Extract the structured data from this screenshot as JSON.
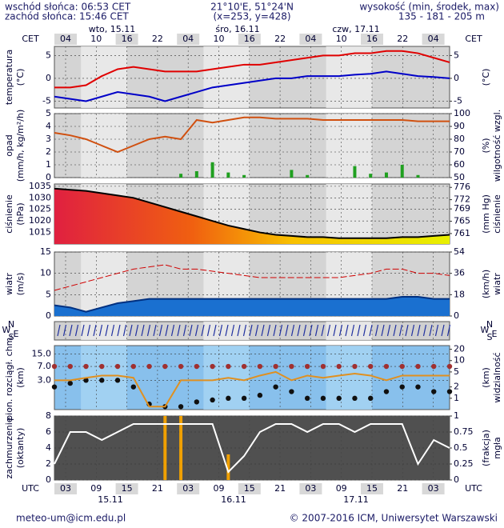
{
  "header": {
    "sunrise": "wschód słońca: 06:53 CET",
    "sunset": "zachód słońca: 15:46 CET",
    "coords": "21°10'E, 51°24'N",
    "grid": "(x=253, y=428)",
    "elevation_title": "wysokość (min, środek, max)",
    "elevation": "135 - 181 - 205 m"
  },
  "top_axis": {
    "zone": "CET",
    "hours": [
      "04",
      "10",
      "16",
      "22",
      "04",
      "10",
      "16",
      "22",
      "04",
      "10",
      "16",
      "22",
      "04"
    ],
    "days": [
      "wto, 15.11",
      "śro, 16.11",
      "czw, 17.11"
    ]
  },
  "bottom_axis": {
    "zone": "UTC",
    "hours": [
      "03",
      "09",
      "15",
      "21",
      "03",
      "09",
      "15",
      "21",
      "03",
      "09",
      "15",
      "21",
      "03"
    ],
    "days": [
      "15.11",
      "16.11",
      "17.11"
    ]
  },
  "panels": [
    {
      "label": [
        "temperatura",
        "(°C)"
      ],
      "label_right": [
        "(°C)"
      ],
      "ylim": [
        -6.5,
        7
      ],
      "yticks": [
        5,
        0,
        -5
      ],
      "y2lim": [
        -6.5,
        7
      ],
      "y2ticks": [
        5,
        0,
        -5
      ],
      "series": [
        {
          "style": "line",
          "color": "#e00000",
          "values": [
            -2,
            -2,
            -1.5,
            0.5,
            2,
            2.5,
            2,
            1.5,
            1.5,
            1.5,
            2,
            2.5,
            3,
            3,
            3.5,
            4,
            4.5,
            5,
            5,
            5.5,
            5.5,
            6,
            6,
            5.5,
            4.5,
            3.5
          ]
        },
        {
          "style": "line",
          "color": "#0000c8",
          "values": [
            -4,
            -4.5,
            -5,
            -4,
            -3,
            -3.5,
            -4,
            -5,
            -4,
            -3,
            -2,
            -1.5,
            -1,
            -0.5,
            0,
            0,
            0.5,
            0.5,
            0.5,
            0.8,
            1,
            1.5,
            1,
            0.5,
            0.3,
            0
          ]
        }
      ]
    },
    {
      "label": [
        "opad",
        "(mm/h, kg/m²/h)"
      ],
      "label_right": [
        "(%)",
        "wilgotność wzgl."
      ],
      "ylim": [
        0,
        5
      ],
      "yticks": [
        5,
        4,
        3,
        2,
        1,
        0
      ],
      "y2lim": [
        50,
        100
      ],
      "y2ticks": [
        100,
        90,
        80,
        70,
        60,
        50
      ],
      "series": [
        {
          "style": "bars",
          "color": "#20a020",
          "values": [
            0,
            0,
            0,
            0,
            0,
            0,
            0,
            0,
            0.3,
            0.5,
            1.2,
            0.4,
            0.2,
            0,
            0,
            0.6,
            0.2,
            0,
            0,
            0.9,
            0.3,
            0.4,
            1.0,
            0.2,
            0,
            0
          ]
        },
        {
          "style": "line",
          "color": "#d05010",
          "axis": "y2",
          "values": [
            85,
            83,
            80,
            75,
            70,
            75,
            80,
            82,
            80,
            95,
            93,
            95,
            97,
            97,
            96,
            96,
            96,
            95,
            95,
            95,
            95,
            95,
            95,
            94,
            94,
            94
          ]
        }
      ]
    },
    {
      "label": [
        "ciśnienie",
        "(hPa)"
      ],
      "label_right": [
        "(mm Hg)",
        "ciśnienie"
      ],
      "ylim": [
        1010,
        1036
      ],
      "yticks": [
        1035,
        1030,
        1025,
        1020,
        1015
      ],
      "y2lim": [
        757.6,
        777.1
      ],
      "y2ticks": [
        776,
        772,
        769,
        765,
        761
      ],
      "series": [
        {
          "style": "area",
          "color": "#000000",
          "values": [
            1034,
            1033.5,
            1033,
            1032,
            1031,
            1030,
            1028,
            1026,
            1024,
            1022,
            1020,
            1018,
            1016.5,
            1015,
            1014,
            1013.5,
            1013,
            1013,
            1012.5,
            1012.5,
            1012.5,
            1012.5,
            1013,
            1013,
            1013.5,
            1014
          ]
        }
      ]
    },
    {
      "label": [
        "wiatr",
        "(m/s)"
      ],
      "label_right": [
        "(km/h)",
        "wiatr"
      ],
      "ylim": [
        0,
        15
      ],
      "yticks": [
        15,
        10,
        5,
        0
      ],
      "y2lim": [
        0,
        54
      ],
      "y2ticks": [
        54,
        36,
        18,
        0
      ],
      "series": [
        {
          "style": "line",
          "color": "#d00000",
          "values": [
            6,
            7,
            8,
            9,
            10,
            11,
            11.5,
            12,
            11,
            11,
            10.5,
            10,
            9.5,
            9,
            9,
            9,
            9,
            9,
            9,
            9.5,
            10,
            11,
            11,
            10,
            10,
            9.5
          ]
        },
        {
          "style": "area",
          "color": "#0050a0",
          "values": [
            2.5,
            2,
            1,
            2,
            3,
            3.5,
            4,
            4,
            4,
            4,
            4,
            4,
            4,
            4,
            4,
            4,
            4,
            4,
            4,
            4,
            4,
            4,
            4.5,
            4.5,
            4,
            4
          ]
        }
      ]
    },
    {
      "compass": [
        "N",
        "W",
        "E",
        "S"
      ],
      "series": []
    },
    {
      "label": [
        "pion. rozciągł. chm.",
        "(km)"
      ],
      "label_right": [
        "(km)",
        "widzialność"
      ],
      "ylog": true,
      "ylim": [
        0.5,
        25
      ],
      "yticks": [
        {
          "value": 15,
          "label": "15.0"
        },
        {
          "value": 7,
          "label": "7.0"
        },
        {
          "value": 3,
          "label": "3.0"
        }
      ],
      "y2log": true,
      "y2lim": [
        0.5,
        25
      ],
      "y2ticks": [
        20,
        10,
        5,
        2,
        1
      ],
      "series": [
        {
          "style": "dots",
          "color": "#a03030",
          "values": [
            7,
            7,
            7,
            7,
            7,
            7,
            7,
            7,
            7,
            7,
            7,
            7,
            7,
            7,
            7,
            7,
            7,
            7,
            7,
            7,
            7,
            7,
            7,
            7,
            7,
            7
          ]
        },
        {
          "style": "dots",
          "color": "#101010",
          "values": [
            2,
            2.5,
            3,
            3,
            3,
            2,
            0.7,
            0.6,
            0.6,
            0.8,
            0.9,
            1,
            1,
            1.2,
            2,
            1.5,
            1,
            1,
            1,
            1,
            1,
            1.5,
            2,
            2,
            1.5,
            1.5
          ]
        },
        {
          "style": "line",
          "color": "#e09020",
          "axis": "y2",
          "values": [
            3,
            3,
            3.5,
            4,
            4,
            3.5,
            0.6,
            0.6,
            3,
            3,
            3,
            3.5,
            3,
            4,
            5,
            3,
            4,
            3.5,
            4,
            4.5,
            4,
            3,
            4,
            4,
            4,
            4
          ]
        }
      ]
    },
    {
      "label": [
        "zachmurzenie",
        "(oktanty)"
      ],
      "label_right": [
        "(frakcja)",
        "mgła"
      ],
      "ylim": [
        0,
        8
      ],
      "yticks": [
        8,
        6,
        4,
        2,
        0
      ],
      "y2lim": [
        0,
        1
      ],
      "y2ticks": [
        1,
        0.75,
        0.5,
        0.25,
        0
      ],
      "series": [
        {
          "style": "bars",
          "color": "#f0a000",
          "axis": "y2",
          "values": [
            0,
            0,
            0,
            0,
            0,
            0,
            0,
            1,
            1,
            0,
            0,
            0.4,
            0,
            0,
            0,
            0,
            0,
            0,
            0,
            0,
            0,
            0,
            0,
            0,
            0,
            0
          ]
        },
        {
          "style": "line",
          "color": "#ffffff",
          "values": [
            2,
            6,
            6,
            5,
            6,
            7,
            7,
            7,
            7,
            7,
            7,
            1,
            3,
            6,
            7,
            7,
            6,
            7,
            7,
            6,
            7,
            7,
            7,
            2,
            5,
            4
          ]
        }
      ]
    }
  ],
  "footer": {
    "email": "meteo-um@icm.edu.pl",
    "copyright": "© 2007-2016 ICM, Uniwersytet Warszawski"
  }
}
